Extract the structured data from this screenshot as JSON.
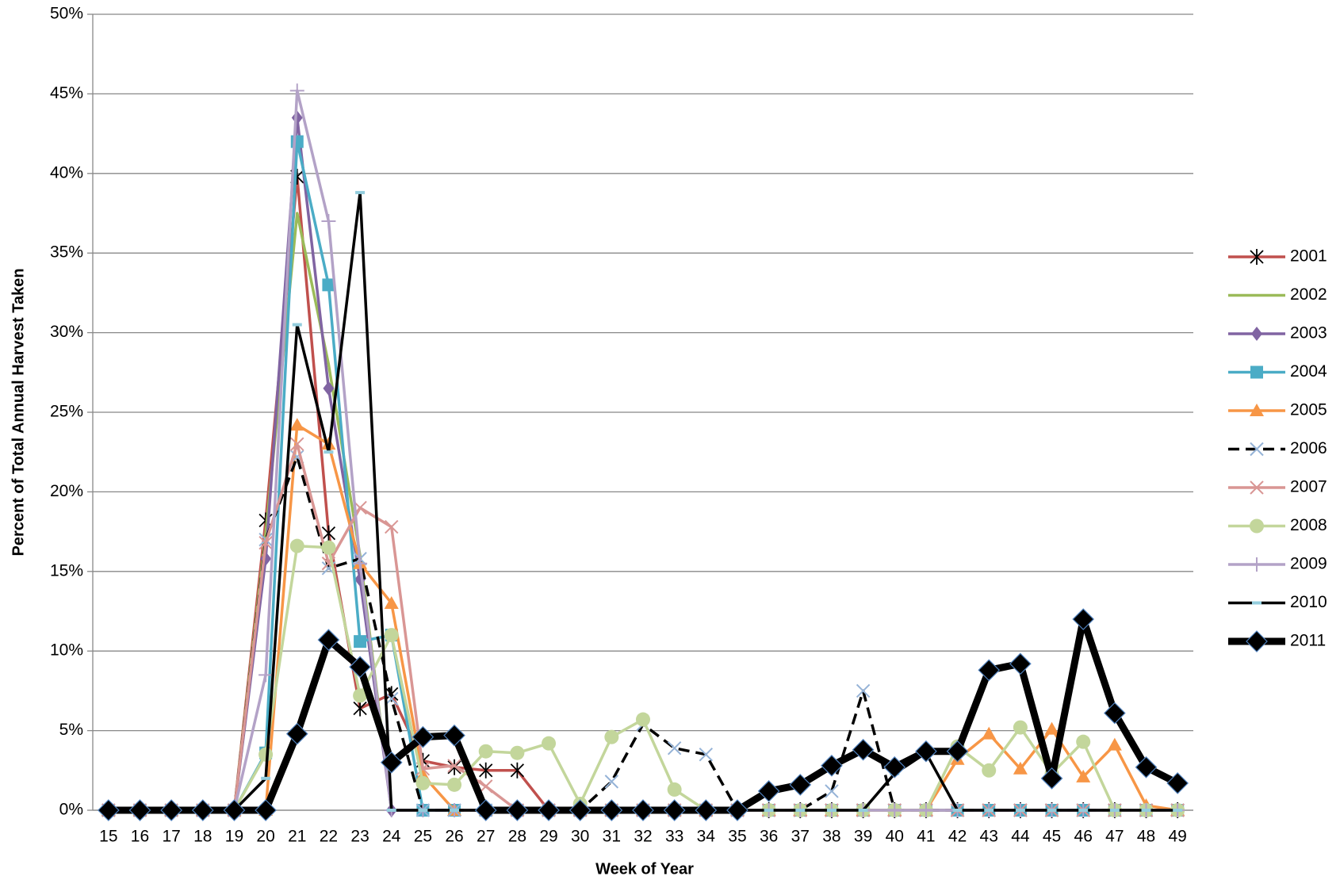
{
  "chart_data": {
    "type": "line",
    "x_label": "Week of Year",
    "y_label": "Percent of Total Annual Harvest Taken",
    "categories": [
      "15",
      "16",
      "17",
      "18",
      "19",
      "20",
      "21",
      "22",
      "23",
      "24",
      "25",
      "26",
      "27",
      "28",
      "29",
      "30",
      "31",
      "32",
      "33",
      "34",
      "35",
      "36",
      "37",
      "38",
      "39",
      "40",
      "41",
      "42",
      "43",
      "44",
      "45",
      "46",
      "47",
      "48",
      "49"
    ],
    "ylim": [
      0,
      50
    ],
    "yticks": [
      {
        "value": 0,
        "label": "0%"
      },
      {
        "value": 5,
        "label": "5%"
      },
      {
        "value": 10,
        "label": "10%"
      },
      {
        "value": 15,
        "label": "15%"
      },
      {
        "value": 20,
        "label": "20%"
      },
      {
        "value": 25,
        "label": "25%"
      },
      {
        "value": 30,
        "label": "30%"
      },
      {
        "value": 35,
        "label": "35%"
      },
      {
        "value": 40,
        "label": "40%"
      },
      {
        "value": 45,
        "label": "45%"
      },
      {
        "value": 50,
        "label": "50%"
      }
    ],
    "grid": true,
    "legend": "right",
    "series": [
      {
        "name": "2001",
        "color": "#c0504d",
        "marker": "star",
        "width": 3.5,
        "values": [
          0,
          0,
          0,
          0,
          0,
          18.2,
          39.8,
          17.4,
          6.4,
          7.3,
          3.1,
          2.7,
          2.5,
          2.5,
          0,
          0,
          0,
          0,
          0,
          0,
          0,
          0,
          0,
          0,
          0,
          0,
          0,
          0,
          0,
          0,
          0,
          0,
          0,
          0,
          0
        ]
      },
      {
        "name": "2002",
        "color": "#9bbb59",
        "marker": "none",
        "width": 3.5,
        "values": [
          0,
          0,
          0,
          0,
          0,
          17.4,
          37.5,
          28,
          16,
          0,
          0,
          0,
          0,
          0,
          0,
          0,
          0,
          0,
          0,
          0,
          0,
          0,
          0,
          0,
          0,
          0,
          0,
          0,
          0,
          0,
          0,
          0,
          0,
          0,
          0
        ]
      },
      {
        "name": "2003",
        "color": "#8064a2",
        "marker": "diamond",
        "width": 3.5,
        "values": [
          0,
          0,
          0,
          0,
          0,
          15.8,
          43.5,
          26.5,
          14.5,
          0,
          0,
          0,
          0,
          0,
          0,
          0,
          0,
          0,
          0,
          0,
          0,
          0,
          0,
          0,
          0,
          0,
          0,
          0,
          0,
          0,
          0,
          0,
          0,
          0,
          0
        ]
      },
      {
        "name": "2004",
        "color": "#4bacc6",
        "marker": "square",
        "width": 3.5,
        "values": [
          0,
          0,
          0,
          0,
          0,
          3.6,
          42,
          33,
          10.6,
          11,
          0,
          0,
          0,
          0,
          0,
          0,
          0,
          0,
          0,
          0,
          0,
          0,
          0,
          0,
          0,
          0,
          0,
          0,
          0,
          0,
          0,
          0,
          0,
          0,
          0
        ]
      },
      {
        "name": "2005",
        "color": "#f79646",
        "marker": "triangle",
        "width": 3.5,
        "values": [
          0,
          0,
          0,
          0,
          0,
          0,
          24.2,
          23,
          15.5,
          13,
          2.2,
          0,
          0,
          0,
          0,
          0,
          0,
          0,
          0,
          0,
          0,
          0,
          0,
          0,
          0,
          0,
          0,
          3.2,
          4.8,
          2.6,
          5.1,
          2.1,
          4.1,
          0.3,
          0
        ]
      },
      {
        "name": "2006",
        "color": "#000000",
        "marker": "cross",
        "markerColor": "#95b3d7",
        "dash": true,
        "width": 3.5,
        "values": [
          0,
          0,
          0,
          0,
          0,
          17,
          22.2,
          15.2,
          15.8,
          7,
          0,
          0,
          0,
          0,
          0,
          0,
          1.8,
          5.4,
          3.9,
          3.5,
          0,
          0,
          0,
          1.2,
          7.5,
          0,
          0,
          0,
          0,
          0,
          0,
          0,
          0,
          0,
          0
        ]
      },
      {
        "name": "2007",
        "color": "#d99694",
        "marker": "cross",
        "width": 3.5,
        "values": [
          0,
          0,
          0,
          0,
          0,
          16.8,
          23,
          15.5,
          19,
          17.8,
          2.6,
          2.8,
          1.5,
          0,
          0,
          0,
          0,
          0,
          0,
          0,
          0,
          0,
          0,
          0,
          0,
          0,
          0,
          0,
          0,
          0,
          0,
          0,
          0,
          0,
          0
        ]
      },
      {
        "name": "2008",
        "color": "#c3d69b",
        "marker": "circle",
        "width": 3.5,
        "values": [
          0,
          0,
          0,
          0,
          0,
          3.5,
          16.6,
          16.5,
          7.2,
          11,
          1.7,
          1.6,
          3.7,
          3.6,
          4.2,
          0.4,
          4.6,
          5.7,
          1.3,
          0,
          0,
          0,
          0,
          0,
          0,
          0,
          0,
          4,
          2.5,
          5.2,
          2.3,
          4.3,
          0,
          0,
          0
        ]
      },
      {
        "name": "2009",
        "color": "#b3a2c7",
        "marker": "plus",
        "width": 3.5,
        "values": [
          0,
          0,
          0,
          0,
          0,
          8.5,
          45.2,
          37,
          15.5,
          0,
          0,
          0,
          0,
          0,
          0,
          0,
          0,
          0,
          0,
          0,
          0,
          0,
          0,
          0,
          0,
          0,
          0,
          0,
          0,
          0,
          0,
          0,
          0,
          0,
          0
        ]
      },
      {
        "name": "2010",
        "color": "#000000",
        "marker": "dash",
        "markerColor": "#93cddd",
        "width": 3.5,
        "values": [
          0,
          0,
          0,
          0,
          0,
          2,
          30.5,
          22.5,
          38.8,
          0,
          0,
          0,
          0,
          0,
          0,
          0,
          0,
          0,
          0,
          0,
          0,
          0,
          0,
          0,
          0,
          2.3,
          3.6,
          0,
          0,
          0,
          0,
          0,
          0,
          0,
          0
        ]
      },
      {
        "name": "2011",
        "color": "#000000",
        "marker": "bigdiamond",
        "markerColor": "#000000",
        "width": 9,
        "values": [
          0,
          0,
          0,
          0,
          0,
          0,
          4.8,
          10.7,
          9,
          3,
          4.6,
          4.7,
          0,
          0,
          0,
          0,
          0,
          0,
          0,
          0,
          0,
          1.2,
          1.6,
          2.8,
          3.8,
          2.7,
          3.7,
          3.7,
          8.8,
          9.2,
          2,
          12,
          6.1,
          2.7,
          1.7
        ]
      }
    ]
  }
}
